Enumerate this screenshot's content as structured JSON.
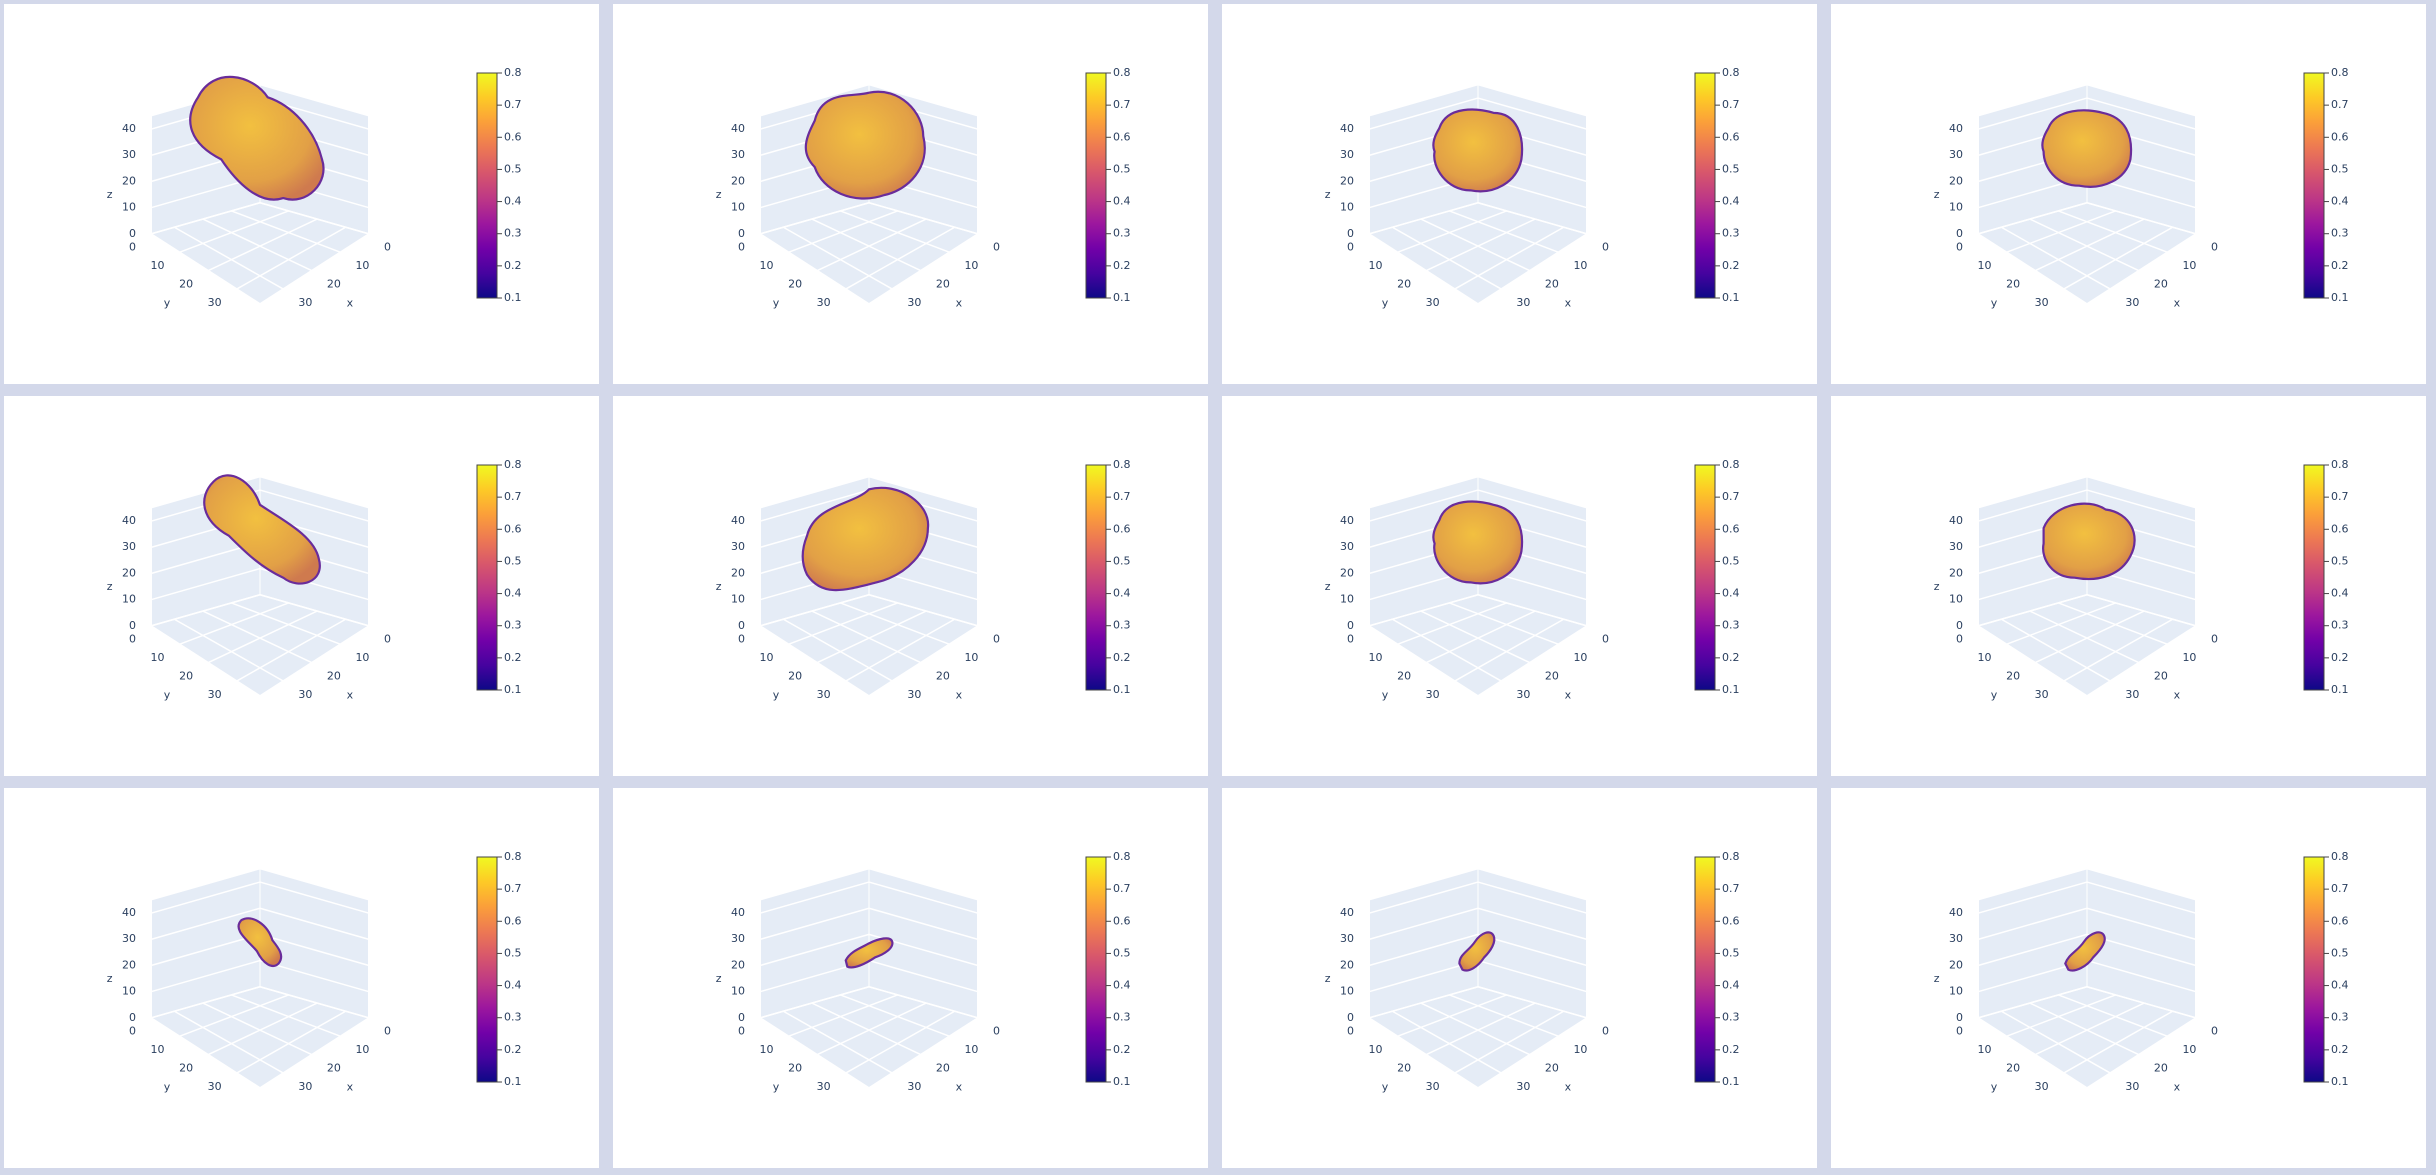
{
  "chart_data": [
    {
      "type": "isosurface",
      "x_label": "x",
      "y_label": "y",
      "z_label": "z",
      "xlim": [
        0,
        38
      ],
      "ylim": [
        0,
        38
      ],
      "zlim": [
        0,
        45
      ],
      "xticks": [
        0,
        10,
        20,
        30
      ],
      "yticks": [
        0,
        10,
        20,
        30
      ],
      "zticks": [
        0,
        10,
        20,
        30,
        40
      ],
      "colorbar_range": [
        0.1,
        0.8
      ],
      "colorbar_ticks": [
        0.1,
        0.2,
        0.3,
        0.4,
        0.5,
        0.6,
        0.7,
        0.8
      ]
    },
    {
      "type": "isosurface",
      "x_label": "x",
      "y_label": "y",
      "z_label": "z",
      "xlim": [
        0,
        38
      ],
      "ylim": [
        0,
        38
      ],
      "zlim": [
        0,
        45
      ],
      "xticks": [
        0,
        10,
        20,
        30
      ],
      "yticks": [
        0,
        10,
        20,
        30
      ],
      "zticks": [
        0,
        10,
        20,
        30,
        40
      ],
      "colorbar_range": [
        0.1,
        0.8
      ],
      "colorbar_ticks": [
        0.1,
        0.2,
        0.3,
        0.4,
        0.5,
        0.6,
        0.7,
        0.8
      ]
    },
    {
      "type": "isosurface",
      "x_label": "x",
      "y_label": "y",
      "z_label": "z",
      "xlim": [
        0,
        38
      ],
      "ylim": [
        0,
        38
      ],
      "zlim": [
        0,
        45
      ],
      "xticks": [
        0,
        10,
        20,
        30
      ],
      "yticks": [
        0,
        10,
        20,
        30
      ],
      "zticks": [
        0,
        10,
        20,
        30,
        40
      ],
      "colorbar_range": [
        0.1,
        0.8
      ],
      "colorbar_ticks": [
        0.1,
        0.2,
        0.3,
        0.4,
        0.5,
        0.6,
        0.7,
        0.8
      ]
    },
    {
      "type": "isosurface",
      "x_label": "x",
      "y_label": "y",
      "z_label": "z",
      "xlim": [
        0,
        38
      ],
      "ylim": [
        0,
        38
      ],
      "zlim": [
        0,
        45
      ],
      "xticks": [
        0,
        10,
        20,
        30
      ],
      "yticks": [
        0,
        10,
        20,
        30
      ],
      "zticks": [
        0,
        10,
        20,
        30,
        40
      ],
      "colorbar_range": [
        0.1,
        0.8
      ],
      "colorbar_ticks": [
        0.1,
        0.2,
        0.3,
        0.4,
        0.5,
        0.6,
        0.7,
        0.8
      ]
    },
    {
      "type": "isosurface",
      "x_label": "x",
      "y_label": "y",
      "z_label": "z",
      "xlim": [
        0,
        38
      ],
      "ylim": [
        0,
        38
      ],
      "zlim": [
        0,
        45
      ],
      "xticks": [
        0,
        10,
        20,
        30
      ],
      "yticks": [
        0,
        10,
        20,
        30
      ],
      "zticks": [
        0,
        10,
        20,
        30,
        40
      ],
      "colorbar_range": [
        0.1,
        0.8
      ],
      "colorbar_ticks": [
        0.1,
        0.2,
        0.3,
        0.4,
        0.5,
        0.6,
        0.7,
        0.8
      ]
    },
    {
      "type": "isosurface",
      "x_label": "x",
      "y_label": "y",
      "z_label": "z",
      "xlim": [
        0,
        38
      ],
      "ylim": [
        0,
        38
      ],
      "zlim": [
        0,
        45
      ],
      "xticks": [
        0,
        10,
        20,
        30
      ],
      "yticks": [
        0,
        10,
        20,
        30
      ],
      "zticks": [
        0,
        10,
        20,
        30,
        40
      ],
      "colorbar_range": [
        0.1,
        0.8
      ],
      "colorbar_ticks": [
        0.1,
        0.2,
        0.3,
        0.4,
        0.5,
        0.6,
        0.7,
        0.8
      ]
    },
    {
      "type": "isosurface",
      "x_label": "x",
      "y_label": "y",
      "z_label": "z",
      "xlim": [
        0,
        38
      ],
      "ylim": [
        0,
        38
      ],
      "zlim": [
        0,
        45
      ],
      "xticks": [
        0,
        10,
        20,
        30
      ],
      "yticks": [
        0,
        10,
        20,
        30
      ],
      "zticks": [
        0,
        10,
        20,
        30,
        40
      ],
      "colorbar_range": [
        0.1,
        0.8
      ],
      "colorbar_ticks": [
        0.1,
        0.2,
        0.3,
        0.4,
        0.5,
        0.6,
        0.7,
        0.8
      ]
    },
    {
      "type": "isosurface",
      "x_label": "x",
      "y_label": "y",
      "z_label": "z",
      "xlim": [
        0,
        38
      ],
      "ylim": [
        0,
        38
      ],
      "zlim": [
        0,
        45
      ],
      "xticks": [
        0,
        10,
        20,
        30
      ],
      "yticks": [
        0,
        10,
        20,
        30
      ],
      "zticks": [
        0,
        10,
        20,
        30,
        40
      ],
      "colorbar_range": [
        0.1,
        0.8
      ],
      "colorbar_ticks": [
        0.1,
        0.2,
        0.3,
        0.4,
        0.5,
        0.6,
        0.7,
        0.8
      ]
    },
    {
      "type": "isosurface",
      "x_label": "x",
      "y_label": "y",
      "z_label": "z",
      "xlim": [
        0,
        38
      ],
      "ylim": [
        0,
        38
      ],
      "zlim": [
        0,
        45
      ],
      "xticks": [
        0,
        10,
        20,
        30
      ],
      "yticks": [
        0,
        10,
        20,
        30
      ],
      "zticks": [
        0,
        10,
        20,
        30,
        40
      ],
      "colorbar_range": [
        0.1,
        0.8
      ],
      "colorbar_ticks": [
        0.1,
        0.2,
        0.3,
        0.4,
        0.5,
        0.6,
        0.7,
        0.8
      ]
    },
    {
      "type": "isosurface",
      "x_label": "x",
      "y_label": "y",
      "z_label": "z",
      "xlim": [
        0,
        38
      ],
      "ylim": [
        0,
        38
      ],
      "zlim": [
        0,
        45
      ],
      "xticks": [
        0,
        10,
        20,
        30
      ],
      "yticks": [
        0,
        10,
        20,
        30
      ],
      "zticks": [
        0,
        10,
        20,
        30,
        40
      ],
      "colorbar_range": [
        0.1,
        0.8
      ],
      "colorbar_ticks": [
        0.1,
        0.2,
        0.3,
        0.4,
        0.5,
        0.6,
        0.7,
        0.8
      ]
    },
    {
      "type": "isosurface",
      "x_label": "x",
      "y_label": "y",
      "z_label": "z",
      "xlim": [
        0,
        38
      ],
      "ylim": [
        0,
        38
      ],
      "zlim": [
        0,
        45
      ],
      "xticks": [
        0,
        10,
        20,
        30
      ],
      "yticks": [
        0,
        10,
        20,
        30
      ],
      "zticks": [
        0,
        10,
        20,
        30,
        40
      ],
      "colorbar_range": [
        0.1,
        0.8
      ],
      "colorbar_ticks": [
        0.1,
        0.2,
        0.3,
        0.4,
        0.5,
        0.6,
        0.7,
        0.8
      ]
    },
    {
      "type": "isosurface",
      "x_label": "x",
      "y_label": "y",
      "z_label": "z",
      "xlim": [
        0,
        38
      ],
      "ylim": [
        0,
        38
      ],
      "zlim": [
        0,
        45
      ],
      "xticks": [
        0,
        10,
        20,
        30
      ],
      "yticks": [
        0,
        10,
        20,
        30
      ],
      "zticks": [
        0,
        10,
        20,
        30,
        40
      ],
      "colorbar_range": [
        0.1,
        0.8
      ],
      "colorbar_ticks": [
        0.1,
        0.2,
        0.3,
        0.4,
        0.5,
        0.6,
        0.7,
        0.8
      ]
    }
  ]
}
